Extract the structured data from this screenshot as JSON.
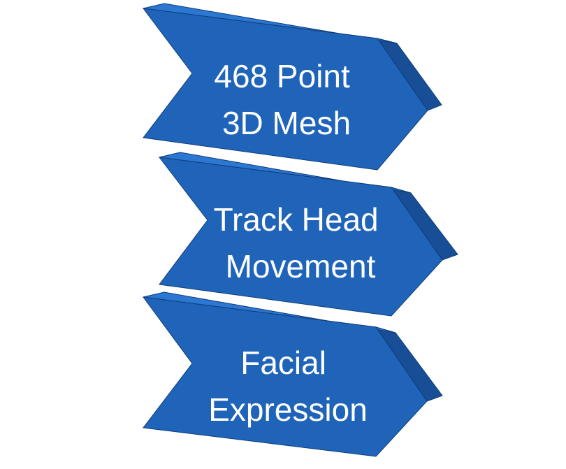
{
  "diagram": {
    "type": "chevron-steps",
    "colors": {
      "face": "#1F64B9",
      "top_bevel": "#2B77D2",
      "side_bevel": "#174E96",
      "edge": "#0F3D7A",
      "text": "#FFFFFF"
    },
    "steps": [
      {
        "line1": "468 Point",
        "line2": "3D Mesh"
      },
      {
        "line1": "Track Head",
        "line2": "Movement"
      },
      {
        "line1": "Facial",
        "line2": "Expression"
      }
    ]
  }
}
